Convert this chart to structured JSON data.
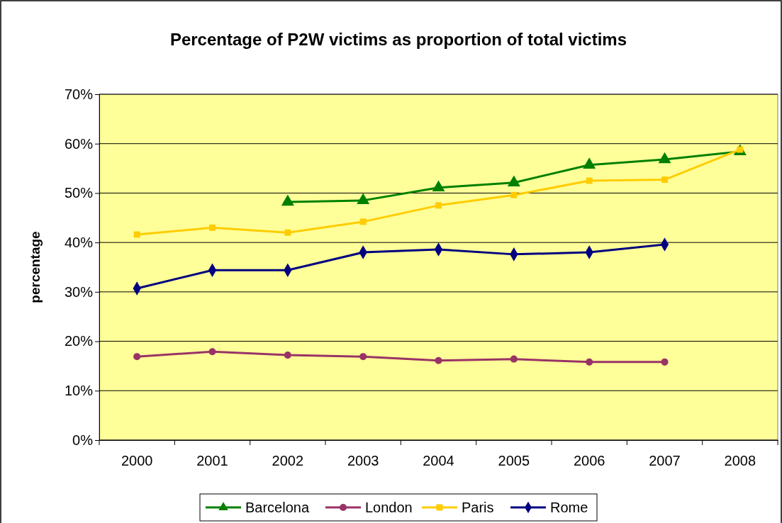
{
  "chart_data": {
    "type": "line",
    "title": "Percentage of P2W victims as proportion of total victims",
    "ylabel": "percentage",
    "categories": [
      "2000",
      "2001",
      "2002",
      "2003",
      "2004",
      "2005",
      "2006",
      "2007",
      "2008"
    ],
    "series": [
      {
        "name": "Barcelona",
        "color": "#008000",
        "marker": "triangle",
        "values": [
          null,
          null,
          48.2,
          48.5,
          51.1,
          52.1,
          55.7,
          56.8,
          58.4
        ]
      },
      {
        "name": "London",
        "color": "#993366",
        "marker": "circle",
        "values": [
          16.9,
          17.9,
          17.2,
          16.9,
          16.1,
          16.4,
          15.8,
          15.8,
          null
        ]
      },
      {
        "name": "Paris",
        "color": "#ffcc00",
        "marker": "square",
        "values": [
          41.6,
          43.0,
          42.0,
          44.2,
          47.5,
          49.6,
          52.5,
          52.7,
          58.8
        ]
      },
      {
        "name": "Rome",
        "color": "#000080",
        "marker": "diamond",
        "values": [
          30.7,
          34.4,
          34.4,
          38.0,
          38.6,
          37.6,
          38.0,
          39.6,
          null
        ]
      }
    ],
    "ylim": [
      0,
      70
    ],
    "yticks": [
      {
        "value": 0,
        "label": "0%"
      },
      {
        "value": 10,
        "label": "10%"
      },
      {
        "value": 20,
        "label": "20%"
      },
      {
        "value": 30,
        "label": "30%"
      },
      {
        "value": 40,
        "label": "40%"
      },
      {
        "value": 50,
        "label": "50%"
      },
      {
        "value": 60,
        "label": "60%"
      },
      {
        "value": 70,
        "label": "70%"
      }
    ],
    "grid": "y",
    "legend": "bottom"
  }
}
